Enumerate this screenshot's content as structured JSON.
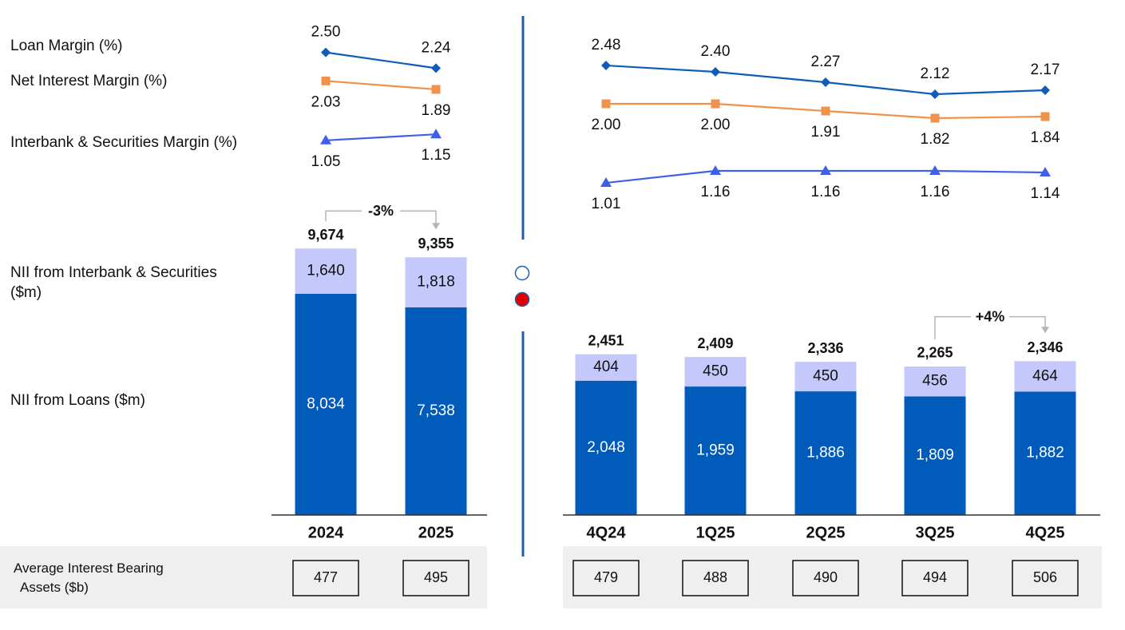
{
  "chart_data": [
    {
      "type": "line",
      "ylim": [
        0.6,
        3.1
      ],
      "series": [
        {
          "name": "Loan Margin (%)",
          "color": "#0e5db8",
          "marker": "diamond",
          "label_position": "above",
          "values": [
            2.5,
            2.24
          ],
          "value_labels": [
            "2.50",
            "2.24"
          ]
        },
        {
          "name": "Net Interest Margin (%)",
          "color": "#f0914c",
          "marker": "square",
          "label_position": "below",
          "values": [
            2.03,
            1.89
          ],
          "value_labels": [
            "2.03",
            "1.89"
          ]
        },
        {
          "name": "Interbank & Securities Margin (%)",
          "color": "#3f5fe8",
          "marker": "triangle",
          "label_position": "below",
          "values": [
            1.05,
            1.15
          ],
          "value_labels": [
            "1.05",
            "1.15"
          ]
        }
      ]
    },
    {
      "type": "bar",
      "stacked": true,
      "ylim": [
        0,
        10000
      ],
      "categories": [
        "2024",
        "2025"
      ],
      "series": [
        {
          "name": "NII from Loans ($m)",
          "color": "#005bbb",
          "label_color": "#ffffff",
          "values": [
            8034,
            7538
          ],
          "value_labels": [
            "8,034",
            "7,538"
          ]
        },
        {
          "name": "NII from Interbank & Securities ($m)",
          "color": "#c5c8fa",
          "label_color": "#111111",
          "values": [
            1640,
            1818
          ],
          "value_labels": [
            "1,640",
            "1,818"
          ]
        }
      ],
      "totals": [
        {
          "value": 9674,
          "label": "9,674"
        },
        {
          "value": 9355,
          "label": "9,355"
        }
      ],
      "change_label": "-3%",
      "assets_label": "Average Interest Bearing Assets ($b)",
      "assets": [
        477,
        495
      ]
    },
    {
      "type": "line",
      "ylim": [
        0.8,
        3.1
      ],
      "series": [
        {
          "color": "#0e5db8",
          "marker": "diamond",
          "label_position": "above",
          "values": [
            2.48,
            2.4,
            2.27,
            2.12,
            2.17
          ],
          "value_labels": [
            "2.48",
            "2.40",
            "2.27",
            "2.12",
            "2.17"
          ]
        },
        {
          "color": "#f0914c",
          "marker": "square",
          "label_position": "below",
          "values": [
            2.0,
            2.0,
            1.91,
            1.82,
            1.84
          ],
          "value_labels": [
            "2.00",
            "2.00",
            "1.91",
            "1.82",
            "1.84"
          ]
        },
        {
          "color": "#3f5fe8",
          "marker": "triangle",
          "label_position": "below",
          "values": [
            1.01,
            1.16,
            1.16,
            1.16,
            1.14
          ],
          "value_labels": [
            "1.01",
            "1.16",
            "1.16",
            "1.16",
            "1.14"
          ]
        }
      ]
    },
    {
      "type": "bar",
      "stacked": true,
      "ylim": [
        0,
        2800
      ],
      "categories": [
        "4Q24",
        "1Q25",
        "2Q25",
        "3Q25",
        "4Q25"
      ],
      "series": [
        {
          "color": "#005bbb",
          "label_color": "#ffffff",
          "values": [
            2048,
            1959,
            1886,
            1809,
            1882
          ],
          "value_labels": [
            "2,048",
            "1,959",
            "1,886",
            "1,809",
            "1,882"
          ]
        },
        {
          "color": "#c5c8fa",
          "label_color": "#111111",
          "values": [
            404,
            450,
            450,
            456,
            464
          ]
        }
      ],
      "totals": [
        {
          "value": 2451,
          "label": "2,451"
        },
        {
          "value": 2409,
          "label": "2,409"
        },
        {
          "value": 2336,
          "label": "2,336"
        },
        {
          "value": 2265,
          "label": "2,265"
        },
        {
          "value": 2346,
          "label": "2,346"
        }
      ],
      "change_label": "+4%",
      "assets": [
        479,
        488,
        490,
        494,
        506
      ]
    }
  ]
}
